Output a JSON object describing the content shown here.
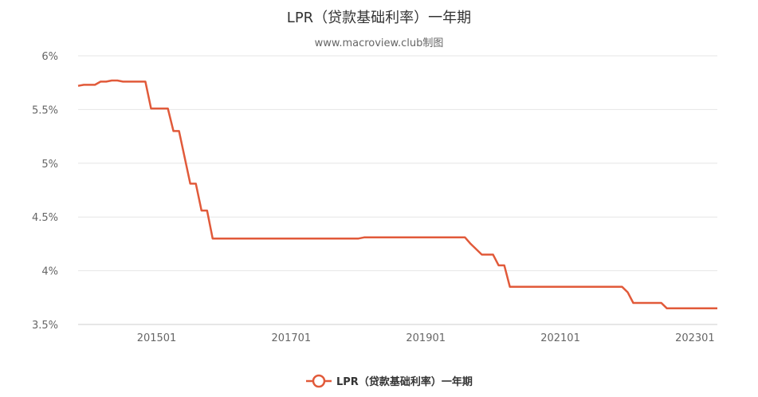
{
  "chart_data": {
    "type": "line",
    "title": "LPR（贷款基础利率）一年期",
    "subtitle": "www.macroview.club制图",
    "xlabel": "",
    "ylabel": "",
    "y_ticks": [
      "6%",
      "5.5%",
      "5%",
      "4.5%",
      "4%",
      "3.5%"
    ],
    "y_tick_values": [
      6,
      5.5,
      5,
      4.5,
      4,
      3.5
    ],
    "ylim": [
      3.5,
      6
    ],
    "x_ticks": [
      "201501",
      "201701",
      "201901",
      "202101",
      "202301"
    ],
    "x_tick_values": [
      2015.0,
      2017.0,
      2019.0,
      2021.0,
      2023.0
    ],
    "xlim": [
      2013.833,
      2023.333
    ],
    "grid": true,
    "legend_position": "bottom",
    "color": "#e15a3a",
    "series": [
      {
        "name": "LPR（贷款基础利率）一年期",
        "x": [
          2013.833,
          2013.917,
          2014.083,
          2014.167,
          2014.25,
          2014.333,
          2014.417,
          2014.5,
          2014.833,
          2014.917,
          2015.167,
          2015.25,
          2015.333,
          2015.5,
          2015.583,
          2015.667,
          2015.75,
          2015.833,
          2016.0,
          2017.0,
          2018.0,
          2018.083,
          2018.333,
          2019.0,
          2019.583,
          2019.667,
          2019.75,
          2019.833,
          2020.0,
          2020.083,
          2020.167,
          2020.25,
          2020.5,
          2021.0,
          2021.5,
          2021.917,
          2022.0,
          2022.083,
          2022.5,
          2022.583,
          2022.667,
          2023.0,
          2023.333
        ],
        "y": [
          5.72,
          5.73,
          5.73,
          5.76,
          5.76,
          5.77,
          5.77,
          5.76,
          5.76,
          5.51,
          5.51,
          5.3,
          5.3,
          4.81,
          4.81,
          4.56,
          4.56,
          4.3,
          4.3,
          4.3,
          4.3,
          4.31,
          4.31,
          4.31,
          4.31,
          4.25,
          4.2,
          4.15,
          4.15,
          4.05,
          4.05,
          3.85,
          3.85,
          3.85,
          3.85,
          3.85,
          3.8,
          3.7,
          3.7,
          3.65,
          3.65,
          3.65,
          3.65
        ]
      }
    ]
  }
}
